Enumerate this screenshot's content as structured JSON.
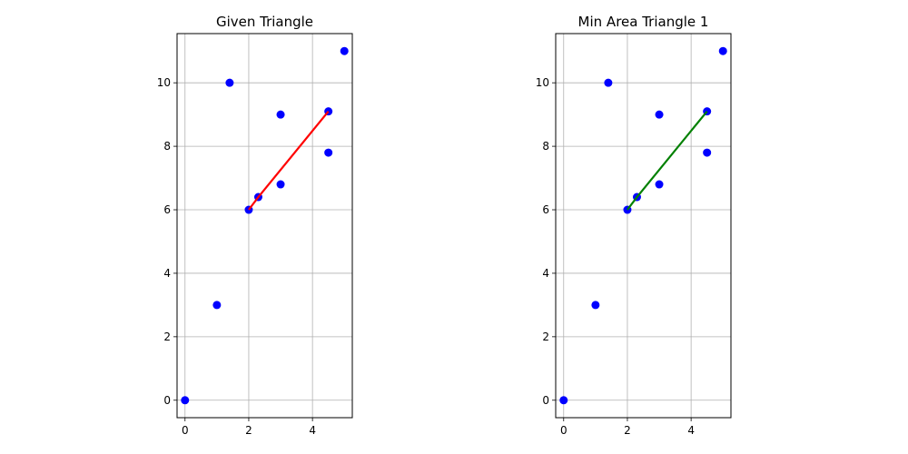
{
  "chart_data": [
    {
      "type": "scatter",
      "title": "Given Triangle",
      "xlabel": "",
      "ylabel": "",
      "xlim": [
        -0.25,
        5.25
      ],
      "ylim": [
        -0.55,
        11.55
      ],
      "xticks": [
        0,
        2,
        4
      ],
      "yticks": [
        0,
        2,
        4,
        6,
        8,
        10
      ],
      "grid": true,
      "points": [
        {
          "x": 0,
          "y": 0
        },
        {
          "x": 1,
          "y": 3
        },
        {
          "x": 1.4,
          "y": 10
        },
        {
          "x": 2,
          "y": 6
        },
        {
          "x": 2.3,
          "y": 6.4
        },
        {
          "x": 3,
          "y": 6.8
        },
        {
          "x": 3,
          "y": 9
        },
        {
          "x": 4.5,
          "y": 7.8
        },
        {
          "x": 4.5,
          "y": 9.1
        },
        {
          "x": 5,
          "y": 11
        }
      ],
      "point_color": "#0000ff",
      "line": {
        "points": [
          [
            2,
            6
          ],
          [
            2.3,
            6.4
          ],
          [
            4.5,
            9.1
          ]
        ],
        "color": "#ff0000"
      }
    },
    {
      "type": "scatter",
      "title": "Min Area Triangle 1",
      "xlabel": "",
      "ylabel": "",
      "xlim": [
        -0.25,
        5.25
      ],
      "ylim": [
        -0.55,
        11.55
      ],
      "xticks": [
        0,
        2,
        4
      ],
      "yticks": [
        0,
        2,
        4,
        6,
        8,
        10
      ],
      "grid": true,
      "points": [
        {
          "x": 0,
          "y": 0
        },
        {
          "x": 1,
          "y": 3
        },
        {
          "x": 1.4,
          "y": 10
        },
        {
          "x": 2,
          "y": 6
        },
        {
          "x": 2.3,
          "y": 6.4
        },
        {
          "x": 3,
          "y": 6.8
        },
        {
          "x": 3,
          "y": 9
        },
        {
          "x": 4.5,
          "y": 7.8
        },
        {
          "x": 4.5,
          "y": 9.1
        },
        {
          "x": 5,
          "y": 11
        }
      ],
      "point_color": "#0000ff",
      "line": {
        "points": [
          [
            2,
            6
          ],
          [
            2.3,
            6.4
          ],
          [
            4.5,
            9.1
          ]
        ],
        "color": "#008000"
      }
    }
  ]
}
